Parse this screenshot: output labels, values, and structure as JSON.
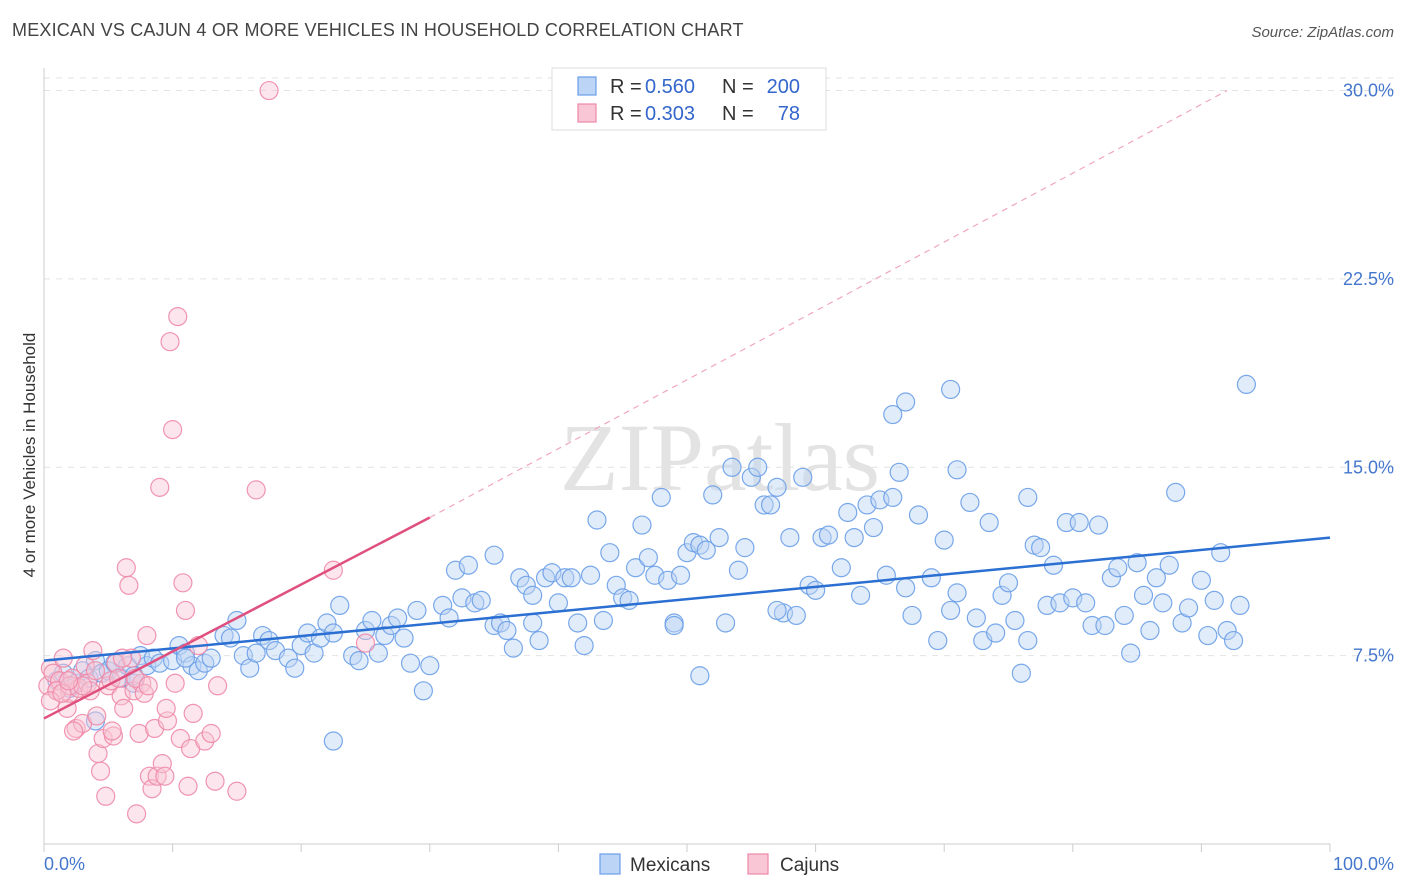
{
  "title": "MEXICAN VS CAJUN 4 OR MORE VEHICLES IN HOUSEHOLD CORRELATION CHART",
  "source": "Source: ZipAtlas.com",
  "watermark": "ZIPatlas",
  "chart_data": {
    "type": "scatter",
    "ylabel": "4 or more Vehicles in Household",
    "xlim": [
      0,
      100
    ],
    "ylim": [
      0,
      30.5
    ],
    "x_tick_labels": [
      "0.0%",
      "100.0%"
    ],
    "y_ticks": [
      {
        "value": 7.5,
        "label": "7.5%"
      },
      {
        "value": 15.0,
        "label": "15.0%"
      },
      {
        "value": 22.5,
        "label": "22.5%"
      },
      {
        "value": 30.0,
        "label": "30.0%"
      }
    ],
    "grid": "horizontal-dashed",
    "legend_top": [
      {
        "r_label": "R =",
        "r_value": "0.560",
        "n_label": "N =",
        "n_value": "200",
        "color": "#6a9ee8",
        "fill": "#bcd4f5"
      },
      {
        "r_label": "R =",
        "r_value": "0.303",
        "n_label": "N =",
        "n_value": "78",
        "color": "#ee89a8",
        "fill": "#f8c6d4"
      }
    ],
    "legend_bottom": [
      "Mexicans",
      "Cajuns"
    ],
    "series": [
      {
        "name": "Mexicans",
        "color": "#6a9ee8",
        "trend": {
          "x": [
            0,
            100
          ],
          "y": [
            7.3,
            12.2
          ],
          "color": "#2a6fd1"
        },
        "points": [
          [
            1,
            6.5
          ],
          [
            1.5,
            6.8
          ],
          [
            2,
            6.2
          ],
          [
            2.5,
            6.4
          ],
          [
            3,
            6.9
          ],
          [
            3.5,
            6.6
          ],
          [
            4,
            7.3
          ],
          [
            4.5,
            6.8
          ],
          [
            5,
            6.9
          ],
          [
            5.5,
            7.2
          ],
          [
            6,
            6.6
          ],
          [
            6.5,
            7.1
          ],
          [
            7,
            6.4
          ],
          [
            7.5,
            7.5
          ],
          [
            8,
            7.1
          ],
          [
            8.5,
            7.4
          ],
          [
            9,
            7.2
          ],
          [
            10,
            7.3
          ],
          [
            10.5,
            7.9
          ],
          [
            11,
            7.6
          ],
          [
            11.5,
            7.1
          ],
          [
            12,
            6.9
          ],
          [
            12.5,
            7.2
          ],
          [
            13,
            7.4
          ],
          [
            14,
            8.3
          ],
          [
            14.5,
            8.2
          ],
          [
            15,
            8.9
          ],
          [
            15.5,
            7.5
          ],
          [
            16,
            7.0
          ],
          [
            16.5,
            7.6
          ],
          [
            17,
            8.3
          ],
          [
            17.5,
            8.1
          ],
          [
            18,
            7.7
          ],
          [
            19,
            7.4
          ],
          [
            19.5,
            7.0
          ],
          [
            20,
            7.9
          ],
          [
            20.5,
            8.4
          ],
          [
            21,
            7.6
          ],
          [
            21.5,
            8.2
          ],
          [
            22,
            8.8
          ],
          [
            22.5,
            8.4
          ],
          [
            23,
            9.5
          ],
          [
            24,
            7.5
          ],
          [
            24.5,
            7.3
          ],
          [
            25,
            8.5
          ],
          [
            25.5,
            8.9
          ],
          [
            26,
            7.6
          ],
          [
            26.5,
            8.3
          ],
          [
            27,
            8.7
          ],
          [
            27.5,
            9.0
          ],
          [
            28,
            8.2
          ],
          [
            28.5,
            7.2
          ],
          [
            29,
            9.3
          ],
          [
            29.5,
            6.1
          ],
          [
            30,
            7.1
          ],
          [
            31,
            9.5
          ],
          [
            31.5,
            9.0
          ],
          [
            32,
            10.9
          ],
          [
            32.5,
            9.8
          ],
          [
            33,
            11.1
          ],
          [
            33.5,
            9.6
          ],
          [
            34,
            9.7
          ],
          [
            35,
            8.7
          ],
          [
            35.5,
            8.8
          ],
          [
            36,
            8.5
          ],
          [
            36.5,
            7.8
          ],
          [
            37,
            10.6
          ],
          [
            37.5,
            10.3
          ],
          [
            38,
            8.8
          ],
          [
            38.5,
            8.1
          ],
          [
            39,
            10.6
          ],
          [
            39.5,
            10.8
          ],
          [
            40,
            9.6
          ],
          [
            40.5,
            10.6
          ],
          [
            41,
            10.6
          ],
          [
            41.5,
            8.8
          ],
          [
            42,
            7.9
          ],
          [
            42.5,
            10.7
          ],
          [
            43,
            12.9
          ],
          [
            43.5,
            8.9
          ],
          [
            44,
            11.6
          ],
          [
            44.5,
            10.3
          ],
          [
            45,
            9.8
          ],
          [
            45.5,
            9.7
          ],
          [
            46,
            11.0
          ],
          [
            46.5,
            12.7
          ],
          [
            47,
            11.4
          ],
          [
            47.5,
            10.7
          ],
          [
            48,
            13.8
          ],
          [
            48.5,
            10.5
          ],
          [
            49,
            8.8
          ],
          [
            49.5,
            10.7
          ],
          [
            50,
            11.6
          ],
          [
            50.5,
            12.0
          ],
          [
            51,
            11.9
          ],
          [
            51.5,
            11.7
          ],
          [
            52,
            13.9
          ],
          [
            52.5,
            12.2
          ],
          [
            53,
            8.8
          ],
          [
            53.5,
            15.0
          ],
          [
            54,
            10.9
          ],
          [
            54.5,
            11.8
          ],
          [
            55,
            14.6
          ],
          [
            55.5,
            15.0
          ],
          [
            56,
            13.5
          ],
          [
            56.5,
            13.5
          ],
          [
            57,
            14.2
          ],
          [
            57.5,
            9.2
          ],
          [
            58,
            12.2
          ],
          [
            58.5,
            9.1
          ],
          [
            59,
            14.6
          ],
          [
            59.5,
            10.3
          ],
          [
            60,
            10.1
          ],
          [
            60.5,
            12.2
          ],
          [
            61,
            12.3
          ],
          [
            62,
            11.0
          ],
          [
            62.5,
            13.2
          ],
          [
            63,
            12.2
          ],
          [
            63.5,
            9.9
          ],
          [
            64,
            13.5
          ],
          [
            64.5,
            12.6
          ],
          [
            65,
            13.7
          ],
          [
            65.5,
            10.7
          ],
          [
            66,
            13.8
          ],
          [
            66.5,
            14.8
          ],
          [
            67,
            10.2
          ],
          [
            67.5,
            9.1
          ],
          [
            68,
            13.1
          ],
          [
            69,
            10.6
          ],
          [
            69.5,
            8.1
          ],
          [
            70,
            12.1
          ],
          [
            70.5,
            9.3
          ],
          [
            71,
            10.0
          ],
          [
            72,
            13.6
          ],
          [
            72.5,
            9.0
          ],
          [
            73,
            8.1
          ],
          [
            73.5,
            12.8
          ],
          [
            74,
            8.4
          ],
          [
            74.5,
            9.9
          ],
          [
            75,
            10.4
          ],
          [
            75.5,
            8.9
          ],
          [
            76,
            6.8
          ],
          [
            76.5,
            8.1
          ],
          [
            77,
            11.9
          ],
          [
            77.5,
            11.8
          ],
          [
            78,
            9.5
          ],
          [
            78.5,
            11.1
          ],
          [
            79,
            9.6
          ],
          [
            79.5,
            12.8
          ],
          [
            80,
            9.8
          ],
          [
            80.5,
            12.8
          ],
          [
            81,
            9.6
          ],
          [
            81.5,
            8.7
          ],
          [
            82,
            12.7
          ],
          [
            82.5,
            8.7
          ],
          [
            83,
            10.6
          ],
          [
            83.5,
            11.0
          ],
          [
            84,
            9.1
          ],
          [
            84.5,
            7.6
          ],
          [
            85,
            11.2
          ],
          [
            85.5,
            9.9
          ],
          [
            86,
            8.5
          ],
          [
            86.5,
            10.6
          ],
          [
            87,
            9.6
          ],
          [
            87.5,
            11.1
          ],
          [
            88,
            14.0
          ],
          [
            88.5,
            8.8
          ],
          [
            89,
            9.4
          ],
          [
            90,
            10.5
          ],
          [
            90.5,
            8.3
          ],
          [
            91,
            9.7
          ],
          [
            91.5,
            11.6
          ],
          [
            92,
            8.5
          ],
          [
            92.5,
            8.1
          ],
          [
            93,
            9.5
          ],
          [
            93.5,
            18.3
          ],
          [
            76.5,
            13.8
          ],
          [
            66,
            17.1
          ],
          [
            70.5,
            18.1
          ],
          [
            71,
            14.9
          ],
          [
            67,
            17.6
          ],
          [
            49,
            8.7
          ],
          [
            38,
            9.9
          ],
          [
            57,
            9.3
          ],
          [
            51,
            6.7
          ],
          [
            35,
            11.5
          ],
          [
            22.5,
            4.1
          ],
          [
            11,
            7.4
          ],
          [
            7,
            6.7
          ],
          [
            4,
            4.9
          ]
        ]
      },
      {
        "name": "Cajuns",
        "color": "#ee89a8",
        "trend": {
          "x": [
            0,
            30
          ],
          "y": [
            5.0,
            13.0
          ],
          "color": "#e0507e"
        },
        "trend_extension": {
          "x": [
            30,
            92
          ],
          "y": [
            13.0,
            30.0
          ],
          "style": "dashed"
        },
        "points": [
          [
            0.3,
            6.3
          ],
          [
            0.5,
            7.0
          ],
          [
            0.7,
            6.8
          ],
          [
            1,
            6.1
          ],
          [
            1.2,
            6.5
          ],
          [
            1.5,
            7.4
          ],
          [
            1.8,
            5.4
          ],
          [
            2,
            6.0
          ],
          [
            2.2,
            6.6
          ],
          [
            2.5,
            4.6
          ],
          [
            2.7,
            6.2
          ],
          [
            3,
            4.8
          ],
          [
            3.2,
            7.1
          ],
          [
            3.4,
            6.4
          ],
          [
            3.6,
            6.1
          ],
          [
            3.8,
            7.7
          ],
          [
            4,
            6.9
          ],
          [
            4.2,
            3.6
          ],
          [
            4.4,
            2.9
          ],
          [
            4.6,
            4.2
          ],
          [
            4.8,
            1.9
          ],
          [
            5,
            6.3
          ],
          [
            5.2,
            6.5
          ],
          [
            5.4,
            4.3
          ],
          [
            5.6,
            7.2
          ],
          [
            5.8,
            6.6
          ],
          [
            6,
            5.9
          ],
          [
            6.2,
            5.4
          ],
          [
            6.4,
            11.0
          ],
          [
            6.6,
            10.3
          ],
          [
            6.8,
            7.4
          ],
          [
            7,
            6.1
          ],
          [
            7.2,
            1.2
          ],
          [
            7.4,
            4.4
          ],
          [
            7.6,
            6.4
          ],
          [
            7.8,
            6.0
          ],
          [
            8,
            8.3
          ],
          [
            8.2,
            2.7
          ],
          [
            8.4,
            2.2
          ],
          [
            8.6,
            4.6
          ],
          [
            8.8,
            2.7
          ],
          [
            9,
            14.2
          ],
          [
            9.2,
            3.2
          ],
          [
            9.4,
            2.7
          ],
          [
            9.6,
            4.9
          ],
          [
            9.8,
            20.0
          ],
          [
            10,
            16.5
          ],
          [
            10.2,
            6.4
          ],
          [
            10.4,
            21.0
          ],
          [
            10.6,
            4.2
          ],
          [
            10.8,
            10.4
          ],
          [
            11,
            9.3
          ],
          [
            11.2,
            2.3
          ],
          [
            11.4,
            3.8
          ],
          [
            11.6,
            5.2
          ],
          [
            12,
            7.9
          ],
          [
            12.5,
            4.1
          ],
          [
            13,
            4.4
          ],
          [
            13.3,
            2.5
          ],
          [
            13.5,
            6.3
          ],
          [
            15,
            2.1
          ],
          [
            16.5,
            14.1
          ],
          [
            17.5,
            30.0
          ],
          [
            22.5,
            10.9
          ],
          [
            25,
            8.0
          ],
          [
            1,
            6.1
          ],
          [
            2,
            6.3
          ],
          [
            2.3,
            4.5
          ],
          [
            3,
            6.3
          ],
          [
            0.5,
            5.7
          ],
          [
            1.4,
            6.0
          ],
          [
            1.9,
            6.5
          ],
          [
            4.1,
            5.1
          ],
          [
            5.3,
            4.5
          ],
          [
            6.1,
            7.4
          ],
          [
            7.1,
            6.6
          ],
          [
            8.1,
            6.3
          ],
          [
            9.5,
            5.4
          ]
        ]
      }
    ]
  }
}
